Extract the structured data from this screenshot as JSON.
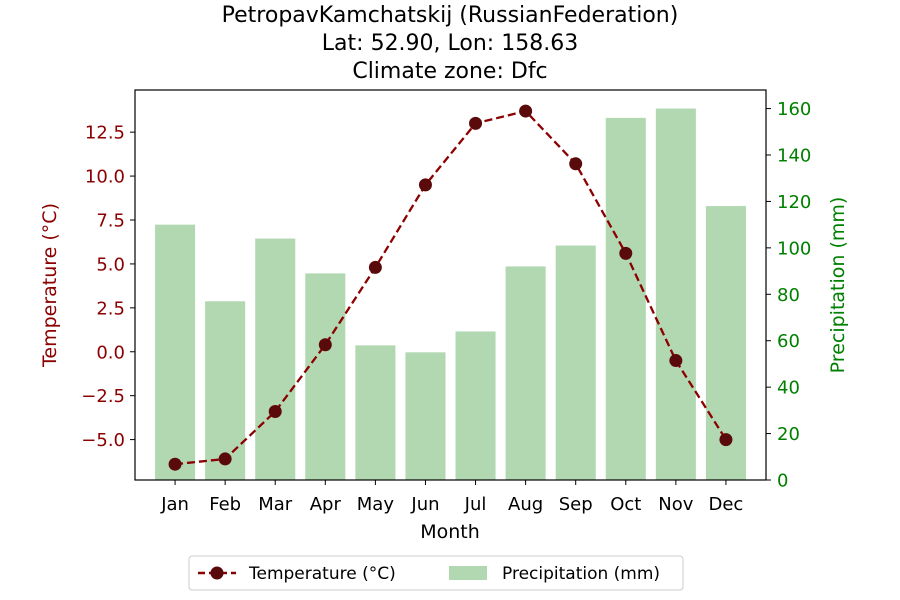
{
  "chart_data": {
    "type": "bar+line",
    "title": "PetropavKamchatskij (RussianFederation)",
    "subtitle_lines": [
      "Lat: 52.90, Lon: 158.63",
      "Climate zone: Dfc"
    ],
    "xlabel": "Month",
    "y_left_label": "Temperature (°C)",
    "y_right_label": "Precipitation (mm)",
    "categories": [
      "Jan",
      "Feb",
      "Mar",
      "Apr",
      "May",
      "Jun",
      "Jul",
      "Aug",
      "Sep",
      "Oct",
      "Nov",
      "Dec"
    ],
    "y_left_range": [
      -7.3,
      14.9
    ],
    "y_left_ticks": [
      -5.0,
      -2.5,
      0.0,
      2.5,
      5.0,
      7.5,
      10.0,
      12.5
    ],
    "y_left_tick_labels": [
      "−5.0",
      "−2.5",
      "0.0",
      "2.5",
      "5.0",
      "7.5",
      "10.0",
      "12.5"
    ],
    "y_right_range": [
      0,
      168
    ],
    "y_right_ticks": [
      0,
      20,
      40,
      60,
      80,
      100,
      120,
      140,
      160
    ],
    "y_right_tick_labels": [
      "0",
      "20",
      "40",
      "60",
      "80",
      "100",
      "120",
      "140",
      "160"
    ],
    "series": [
      {
        "name": "Temperature (°C)",
        "kind": "line",
        "axis": "left",
        "style": "dashed, circle markers",
        "color": "#8b0000",
        "marker_color": "#5a0a0a",
        "values": [
          -6.4,
          -6.1,
          -3.4,
          0.4,
          4.8,
          9.5,
          13.0,
          13.7,
          10.7,
          5.6,
          -0.5,
          -5.0
        ]
      },
      {
        "name": "Precipitation (mm)",
        "kind": "bar",
        "axis": "right",
        "color": "#b2d8b2",
        "values": [
          110,
          77,
          104,
          89,
          58,
          55,
          64,
          92,
          101,
          156,
          160,
          118
        ]
      }
    ],
    "left_axis_color": "#8b0000",
    "right_axis_color": "#008000",
    "legend_position": "bottom-center",
    "grid": false
  }
}
